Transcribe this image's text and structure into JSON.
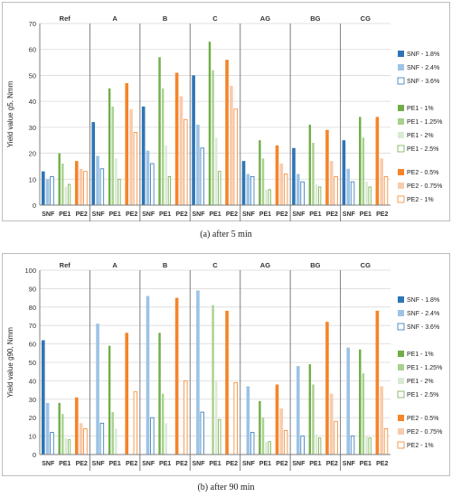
{
  "series_legend": [
    {
      "name": "SNF - 1.8%",
      "color": "#2e75b6",
      "fill": "solid"
    },
    {
      "name": "SNF - 2.4%",
      "color": "#9dc3e6",
      "fill": "solid"
    },
    {
      "name": "SNF - 3.6%",
      "color": "#2e75b6",
      "fill": "outline"
    },
    {
      "name": "PE1 - 1%",
      "color": "#70ad47",
      "fill": "solid"
    },
    {
      "name": "PE1 - 1.25%",
      "color": "#a9d18e",
      "fill": "solid"
    },
    {
      "name": "PE1 - 2%",
      "color": "#d9ead3",
      "fill": "solid"
    },
    {
      "name": "PE1 - 2.5%",
      "color": "#70ad47",
      "fill": "outline"
    },
    {
      "name": "PE2 - 0.5%",
      "color": "#f4852a",
      "fill": "solid"
    },
    {
      "name": "PE2 - 0.75%",
      "color": "#f8cbad",
      "fill": "solid"
    },
    {
      "name": "PE2 - 1%",
      "color": "#f4852a",
      "fill": "outline"
    }
  ],
  "chart_data": [
    {
      "type": "bar",
      "caption": "(a) after 5 min",
      "ylabel": "Yield value g5, Nmm",
      "ylim": [
        0,
        70
      ],
      "yticks": [
        0,
        10,
        20,
        30,
        40,
        50,
        60,
        70
      ],
      "grid": true,
      "legend_position": "right",
      "groups": [
        "Ref",
        "A",
        "B",
        "C",
        "AG",
        "BG",
        "CG"
      ],
      "subcategories": [
        "SNF",
        "PE1",
        "PE2"
      ],
      "values": {
        "Ref": {
          "SNF": [
            13,
            10,
            11
          ],
          "PE1": [
            20,
            16,
            7,
            8
          ],
          "PE2": [
            17,
            14,
            13
          ]
        },
        "A": {
          "SNF": [
            32,
            19,
            14
          ],
          "PE1": [
            45,
            38,
            18,
            10
          ],
          "PE2": [
            47,
            37,
            28
          ]
        },
        "B": {
          "SNF": [
            38,
            21,
            16
          ],
          "PE1": [
            57,
            45,
            23,
            11
          ],
          "PE2": [
            51,
            42,
            33
          ]
        },
        "C": {
          "SNF": [
            50,
            31,
            22
          ],
          "PE1": [
            63,
            52,
            26,
            13
          ],
          "PE2": [
            56,
            46,
            37
          ]
        },
        "AG": {
          "SNF": [
            17,
            12,
            11
          ],
          "PE1": [
            25,
            18,
            6,
            6
          ],
          "PE2": [
            23,
            16,
            12
          ]
        },
        "BG": {
          "SNF": [
            22,
            12,
            9
          ],
          "PE1": [
            31,
            24,
            8,
            7
          ],
          "PE2": [
            29,
            17,
            11
          ]
        },
        "CG": {
          "SNF": [
            25,
            14,
            9
          ],
          "PE1": [
            34,
            26,
            9,
            7
          ],
          "PE2": [
            34,
            18,
            11
          ]
        }
      }
    },
    {
      "type": "bar",
      "caption": "(b) after 90 min",
      "ylabel": "Yield value g90, Nmm",
      "ylim": [
        0,
        100
      ],
      "yticks": [
        0,
        10,
        20,
        30,
        40,
        50,
        60,
        70,
        80,
        90,
        100
      ],
      "grid": true,
      "legend_position": "right",
      "groups": [
        "Ref",
        "A",
        "B",
        "C",
        "AG",
        "BG",
        "CG"
      ],
      "subcategories": [
        "SNF",
        "PE1",
        "PE2"
      ],
      "values": {
        "Ref": {
          "SNF": [
            62,
            28,
            12
          ],
          "PE1": [
            28,
            22,
            9,
            8
          ],
          "PE2": [
            31,
            17,
            14
          ]
        },
        "A": {
          "SNF": [
            null,
            71,
            17
          ],
          "PE1": [
            59,
            23,
            14,
            null
          ],
          "PE2": [
            66,
            null,
            34
          ]
        },
        "B": {
          "SNF": [
            null,
            86,
            20
          ],
          "PE1": [
            66,
            33,
            17,
            null
          ],
          "PE2": [
            85,
            null,
            40
          ]
        },
        "C": {
          "SNF": [
            null,
            89,
            23
          ],
          "PE1": [
            null,
            81,
            40,
            19
          ],
          "PE2": [
            78,
            null,
            39
          ]
        },
        "AG": {
          "SNF": [
            null,
            37,
            12
          ],
          "PE1": [
            29,
            20,
            7,
            7
          ],
          "PE2": [
            38,
            25,
            13
          ]
        },
        "BG": {
          "SNF": [
            null,
            48,
            10
          ],
          "PE1": [
            49,
            38,
            11,
            9
          ],
          "PE2": [
            72,
            33,
            18
          ]
        },
        "CG": {
          "SNF": [
            null,
            58,
            10
          ],
          "PE1": [
            57,
            44,
            10,
            9
          ],
          "PE2": [
            78,
            37,
            14
          ]
        }
      }
    }
  ]
}
